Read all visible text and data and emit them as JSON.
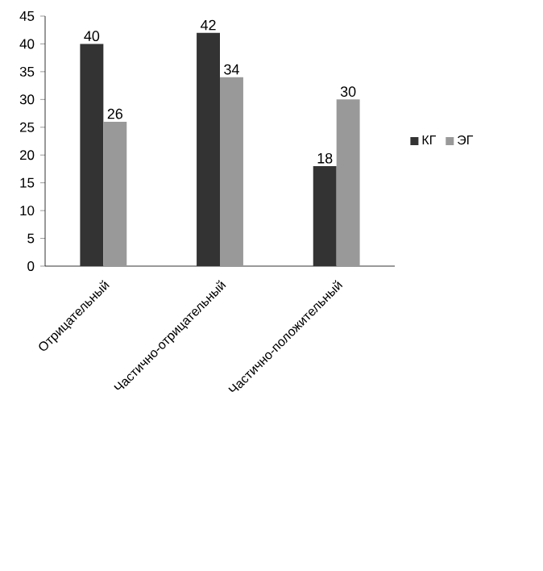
{
  "chart_data": {
    "type": "bar",
    "categories": [
      "Отрицательный",
      "Частично-отрицательный",
      "Частично-положительный"
    ],
    "series": [
      {
        "name": "КГ",
        "color": "#333333",
        "values": [
          40,
          42,
          18
        ]
      },
      {
        "name": "ЭГ",
        "color": "#999999",
        "values": [
          26,
          34,
          30
        ]
      }
    ],
    "ylim": [
      0,
      45
    ],
    "yticks": [
      0,
      5,
      10,
      15,
      20,
      25,
      30,
      35,
      40,
      45
    ],
    "grid": false,
    "legend": "right",
    "data_labels": true
  }
}
